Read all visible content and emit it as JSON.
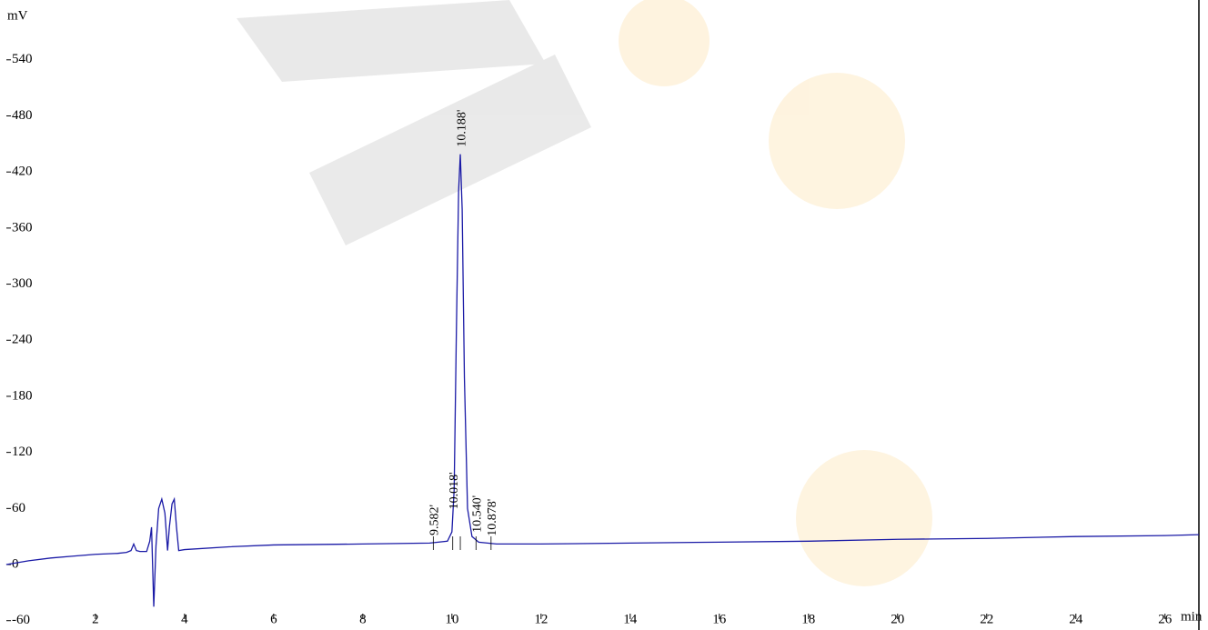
{
  "chart_data": {
    "type": "line",
    "y_label": "mV",
    "x_label": "min",
    "x": [
      0,
      0.5,
      1,
      1.5,
      2,
      2.5,
      2.7,
      2.8,
      2.86,
      2.92,
      3.0,
      3.15,
      3.22,
      3.26,
      3.31,
      3.36,
      3.42,
      3.49,
      3.56,
      3.62,
      3.66,
      3.72,
      3.77,
      3.82,
      3.87,
      4,
      5,
      6,
      8,
      9.5,
      9.9,
      10.0,
      10.05,
      10.1,
      10.15,
      10.188,
      10.23,
      10.28,
      10.35,
      10.45,
      10.6,
      10.8,
      11,
      12,
      14,
      16,
      18,
      20,
      22,
      24,
      26,
      26.76
    ],
    "series": [
      {
        "color": "#1a1aa6",
        "values": [
          0,
          4,
          7,
          9,
          11,
          12,
          13,
          15,
          22,
          15,
          14,
          14,
          25,
          40,
          -45,
          20,
          60,
          70,
          55,
          15,
          40,
          65,
          70,
          40,
          15,
          16,
          19,
          21,
          22,
          23,
          25,
          35,
          80,
          250,
          400,
          439,
          380,
          200,
          60,
          30,
          24,
          23,
          22,
          22,
          23,
          24,
          25,
          27,
          28,
          30,
          31,
          32
        ]
      }
    ],
    "peaks": [
      {
        "value": 9.582,
        "label": "9.582'"
      },
      {
        "value": 10.018,
        "label": "10.018'"
      },
      {
        "value": 10.188,
        "label": "10.188'"
      },
      {
        "value": 10.54,
        "label": "10.540'"
      },
      {
        "value": 10.878,
        "label": "10.878'"
      }
    ],
    "xlim": [
      -0.14,
      26.76
    ],
    "xticks": [
      2,
      4,
      6,
      8,
      10,
      12,
      14,
      16,
      18,
      20,
      22,
      24,
      26
    ],
    "ylim": [
      -70,
      604
    ],
    "yticks": [
      540,
      480,
      420,
      360,
      300,
      240,
      180,
      120,
      60,
      0,
      -60
    ]
  }
}
